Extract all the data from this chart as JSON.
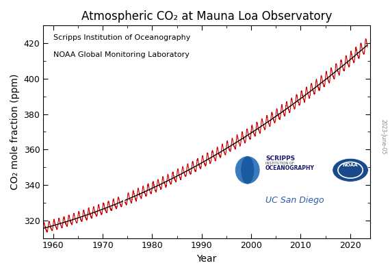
{
  "title": "Atmospheric CO₂ at Mauna Loa Observatory",
  "ylabel": "CO₂ mole fraction (ppm)",
  "xlabel": "Year",
  "annotation_line1": "Scripps Institution of Oceanography",
  "annotation_line2": "NOAA Global Monitoring Laboratory",
  "annotation_uc": "UC San Diego",
  "year_start": 1958.0,
  "year_end": 2023.5,
  "background_color": "#ffffff",
  "line_color_raw": "#cc0000",
  "line_color_trend": "#000000",
  "title_fontsize": 12,
  "label_fontsize": 10,
  "tick_fontsize": 9,
  "side_text": "2023-June-05",
  "xticks": [
    1960,
    1970,
    1980,
    1990,
    2000,
    2010,
    2020
  ],
  "yticks": [
    320,
    340,
    360,
    380,
    400,
    420
  ],
  "ylim": [
    310,
    430
  ],
  "xlim": [
    1958,
    2024
  ],
  "gap_start": 1974.0,
  "gap_end": 1974.5,
  "scripps_color": "#2a5ba8",
  "noaa_color": "#1a4f8a",
  "uc_text_color": "#2a5ba8"
}
